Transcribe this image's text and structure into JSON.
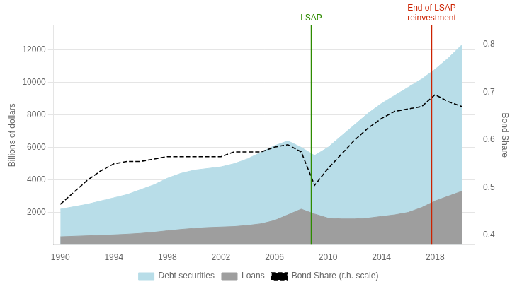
{
  "chart_data": {
    "type": "area",
    "x": [
      1990,
      1991,
      1992,
      1993,
      1994,
      1995,
      1996,
      1997,
      1998,
      1999,
      2000,
      2001,
      2002,
      2003,
      2004,
      2005,
      2006,
      2007,
      2008,
      2009,
      2010,
      2011,
      2012,
      2013,
      2014,
      2015,
      2016,
      2017,
      2018,
      2019,
      2020
    ],
    "series": [
      {
        "name": "Debt securities",
        "type": "area",
        "color": "#B8DDE8",
        "values": [
          2200,
          2350,
          2500,
          2700,
          2900,
          3100,
          3400,
          3700,
          4100,
          4400,
          4600,
          4700,
          4800,
          5000,
          5300,
          5700,
          6100,
          6400,
          6000,
          5500,
          6000,
          6700,
          7400,
          8100,
          8700,
          9200,
          9700,
          10200,
          10800,
          11500,
          12300
        ]
      },
      {
        "name": "Loans",
        "type": "area",
        "color": "#9E9E9E",
        "values": [
          500,
          530,
          560,
          590,
          620,
          660,
          710,
          780,
          870,
          950,
          1020,
          1070,
          1100,
          1130,
          1200,
          1300,
          1500,
          1850,
          2200,
          1900,
          1650,
          1600,
          1600,
          1650,
          1750,
          1850,
          2000,
          2300,
          2700,
          3000,
          3300
        ]
      },
      {
        "name": "Bond Share (r.h. scale)",
        "type": "line",
        "color": "#000000",
        "line_style": "dashed",
        "axis": "y2",
        "values": [
          0.465,
          0.49,
          0.515,
          0.535,
          0.55,
          0.555,
          0.555,
          0.56,
          0.565,
          0.565,
          0.565,
          0.565,
          0.565,
          0.575,
          0.575,
          0.575,
          0.585,
          0.59,
          0.575,
          0.505,
          0.54,
          0.57,
          0.6,
          0.625,
          0.645,
          0.66,
          0.665,
          0.67,
          0.695,
          0.68,
          0.67
        ]
      }
    ],
    "xlim": [
      1989.5,
      2021.0
    ],
    "xticks": [
      1990,
      1994,
      1998,
      2002,
      2006,
      2010,
      2014,
      2018
    ],
    "ylim": [
      0,
      13500
    ],
    "yticks": [
      2000,
      4000,
      6000,
      8000,
      10000,
      12000
    ],
    "y2lim": [
      0.38,
      0.84
    ],
    "y2ticks": [
      0.4,
      0.5,
      0.6,
      0.7,
      0.8
    ],
    "ylabel": "Billions of dollars",
    "y2label": "Bond Share",
    "grid": "y",
    "legend": "bottom",
    "annotations": [
      {
        "x": 2008.75,
        "text": "LSAP",
        "color": "#2E8B00"
      },
      {
        "x": 2017.75,
        "text": [
          "End of LSAP",
          "reinvestment"
        ],
        "color": "#CC2200"
      }
    ]
  }
}
